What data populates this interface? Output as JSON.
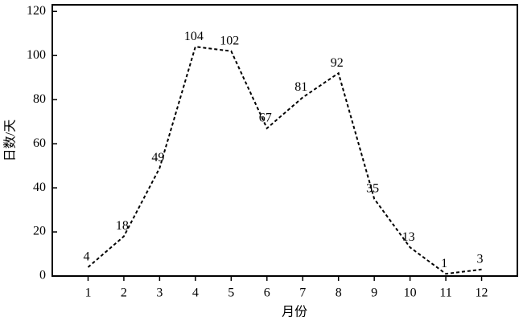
{
  "chart_data": {
    "type": "line",
    "x_label": "月份",
    "y_label": "日数/天",
    "x": [
      1,
      2,
      3,
      4,
      5,
      6,
      7,
      8,
      9,
      10,
      11,
      12
    ],
    "series": [
      {
        "color": "#000000",
        "values": [
          4,
          18,
          49,
          104,
          102,
          67,
          81,
          92,
          35,
          13,
          1,
          3
        ]
      }
    ],
    "xlim": [
      0,
      13
    ],
    "xticks": [
      1,
      2,
      3,
      4,
      5,
      6,
      7,
      8,
      9,
      10,
      11,
      12
    ],
    "ylim": [
      0,
      123
    ],
    "yticks": [
      0,
      20,
      40,
      60,
      80,
      100,
      120
    ],
    "line_style": "dashed",
    "data_labels": true
  }
}
